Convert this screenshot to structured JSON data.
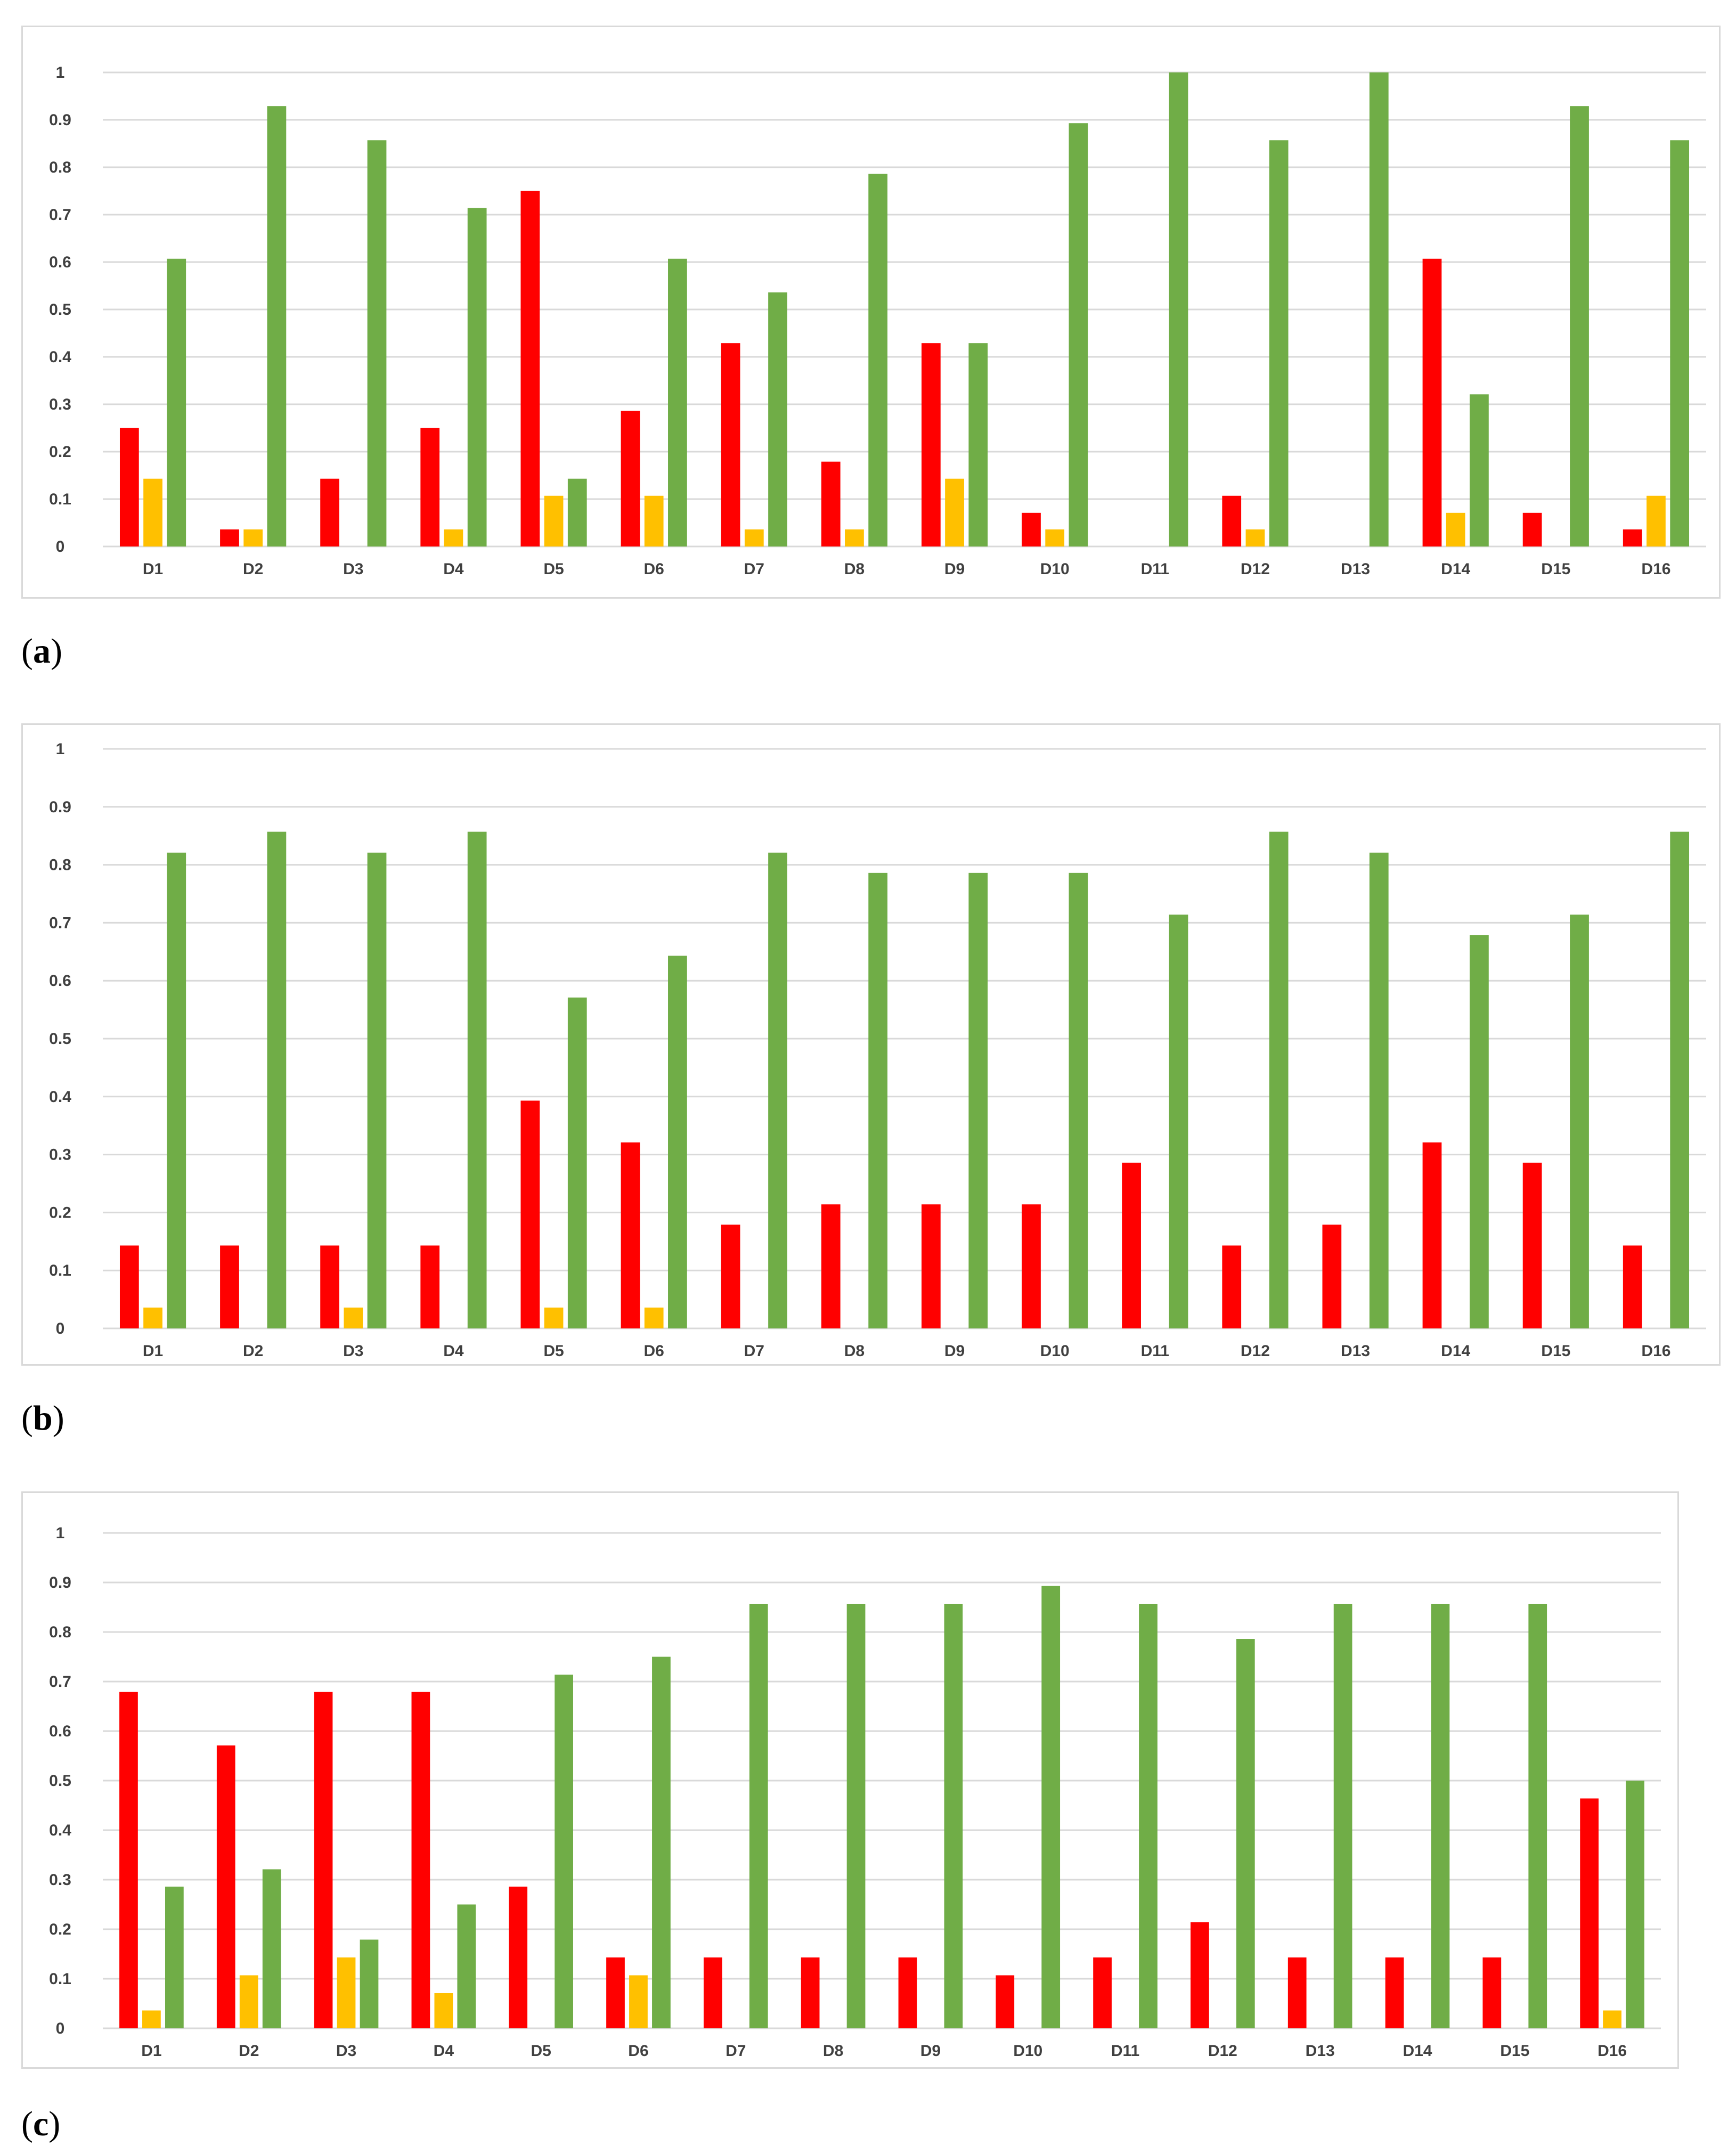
{
  "colors": {
    "red": "#ff0000",
    "yellow": "#ffc000",
    "green": "#70ad47",
    "grid": "#d9d9d9",
    "text": "#404040"
  },
  "panels": [
    {
      "label_open": "(",
      "label_letter": "a",
      "label_close": ")"
    },
    {
      "label_open": "(",
      "label_letter": "b",
      "label_close": ")"
    },
    {
      "label_open": "(",
      "label_letter": "c",
      "label_close": ")"
    }
  ],
  "chart_data": [
    {
      "type": "bar",
      "categories": [
        "D1",
        "D2",
        "D3",
        "D4",
        "D5",
        "D6",
        "D7",
        "D8",
        "D9",
        "D10",
        "D11",
        "D12",
        "D13",
        "D14",
        "D15",
        "D16"
      ],
      "series": [
        {
          "color": "#ff0000",
          "values": [
            0.25,
            0.036,
            0.143,
            0.25,
            0.75,
            0.286,
            0.429,
            0.179,
            0.429,
            0.071,
            0,
            0.107,
            0,
            0.607,
            0.071,
            0.036
          ]
        },
        {
          "color": "#ffc000",
          "values": [
            0.143,
            0.036,
            0,
            0.036,
            0.107,
            0.107,
            0.036,
            0.036,
            0.143,
            0.036,
            0,
            0.036,
            0,
            0.071,
            0,
            0.107
          ]
        },
        {
          "color": "#70ad47",
          "values": [
            0.607,
            0.929,
            0.857,
            0.714,
            0.143,
            0.607,
            0.536,
            0.786,
            0.429,
            0.893,
            1.0,
            0.857,
            1.0,
            0.321,
            0.929,
            0.857
          ]
        }
      ],
      "yticks": [
        "0",
        "0.1",
        "0.2",
        "0.3",
        "0.4",
        "0.5",
        "0.6",
        "0.7",
        "0.8",
        "0.9",
        "1"
      ],
      "ylim": [
        0,
        1
      ],
      "grid": true
    },
    {
      "type": "bar",
      "categories": [
        "D1",
        "D2",
        "D3",
        "D4",
        "D5",
        "D6",
        "D7",
        "D8",
        "D9",
        "D10",
        "D11",
        "D12",
        "D13",
        "D14",
        "D15",
        "D16"
      ],
      "series": [
        {
          "color": "#ff0000",
          "values": [
            0.143,
            0.143,
            0.143,
            0.143,
            0.393,
            0.321,
            0.179,
            0.214,
            0.214,
            0.214,
            0.286,
            0.143,
            0.179,
            0.321,
            0.286,
            0.143
          ]
        },
        {
          "color": "#ffc000",
          "values": [
            0.036,
            0,
            0.036,
            0,
            0.036,
            0.036,
            0,
            0,
            0,
            0,
            0,
            0,
            0,
            0,
            0,
            0
          ]
        },
        {
          "color": "#70ad47",
          "values": [
            0.821,
            0.857,
            0.821,
            0.857,
            0.571,
            0.643,
            0.821,
            0.786,
            0.786,
            0.786,
            0.714,
            0.857,
            0.821,
            0.679,
            0.714,
            0.857
          ]
        }
      ],
      "yticks": [
        "0",
        "0.1",
        "0.2",
        "0.3",
        "0.4",
        "0.5",
        "0.6",
        "0.7",
        "0.8",
        "0.9",
        "1"
      ],
      "ylim": [
        0,
        1
      ],
      "grid": true
    },
    {
      "type": "bar",
      "categories": [
        "D1",
        "D2",
        "D3",
        "D4",
        "D5",
        "D6",
        "D7",
        "D8",
        "D9",
        "D10",
        "D11",
        "D12",
        "D13",
        "D14",
        "D15",
        "D16"
      ],
      "series": [
        {
          "color": "#ff0000",
          "values": [
            0.679,
            0.571,
            0.679,
            0.679,
            0.286,
            0.143,
            0.143,
            0.143,
            0.143,
            0.107,
            0.143,
            0.214,
            0.143,
            0.143,
            0.143,
            0.464
          ]
        },
        {
          "color": "#ffc000",
          "values": [
            0.036,
            0.107,
            0.143,
            0.071,
            0,
            0.107,
            0,
            0,
            0,
            0,
            0,
            0,
            0,
            0,
            0,
            0.036
          ]
        },
        {
          "color": "#70ad47",
          "values": [
            0.286,
            0.321,
            0.179,
            0.25,
            0.714,
            0.75,
            0.857,
            0.857,
            0.857,
            0.893,
            0.857,
            0.786,
            0.857,
            0.857,
            0.857,
            0.5
          ]
        }
      ],
      "yticks": [
        "0",
        "0.1",
        "0.2",
        "0.3",
        "0.4",
        "0.5",
        "0.6",
        "0.7",
        "0.8",
        "0.9",
        "1"
      ],
      "ylim": [
        0,
        1
      ],
      "grid": true
    }
  ]
}
